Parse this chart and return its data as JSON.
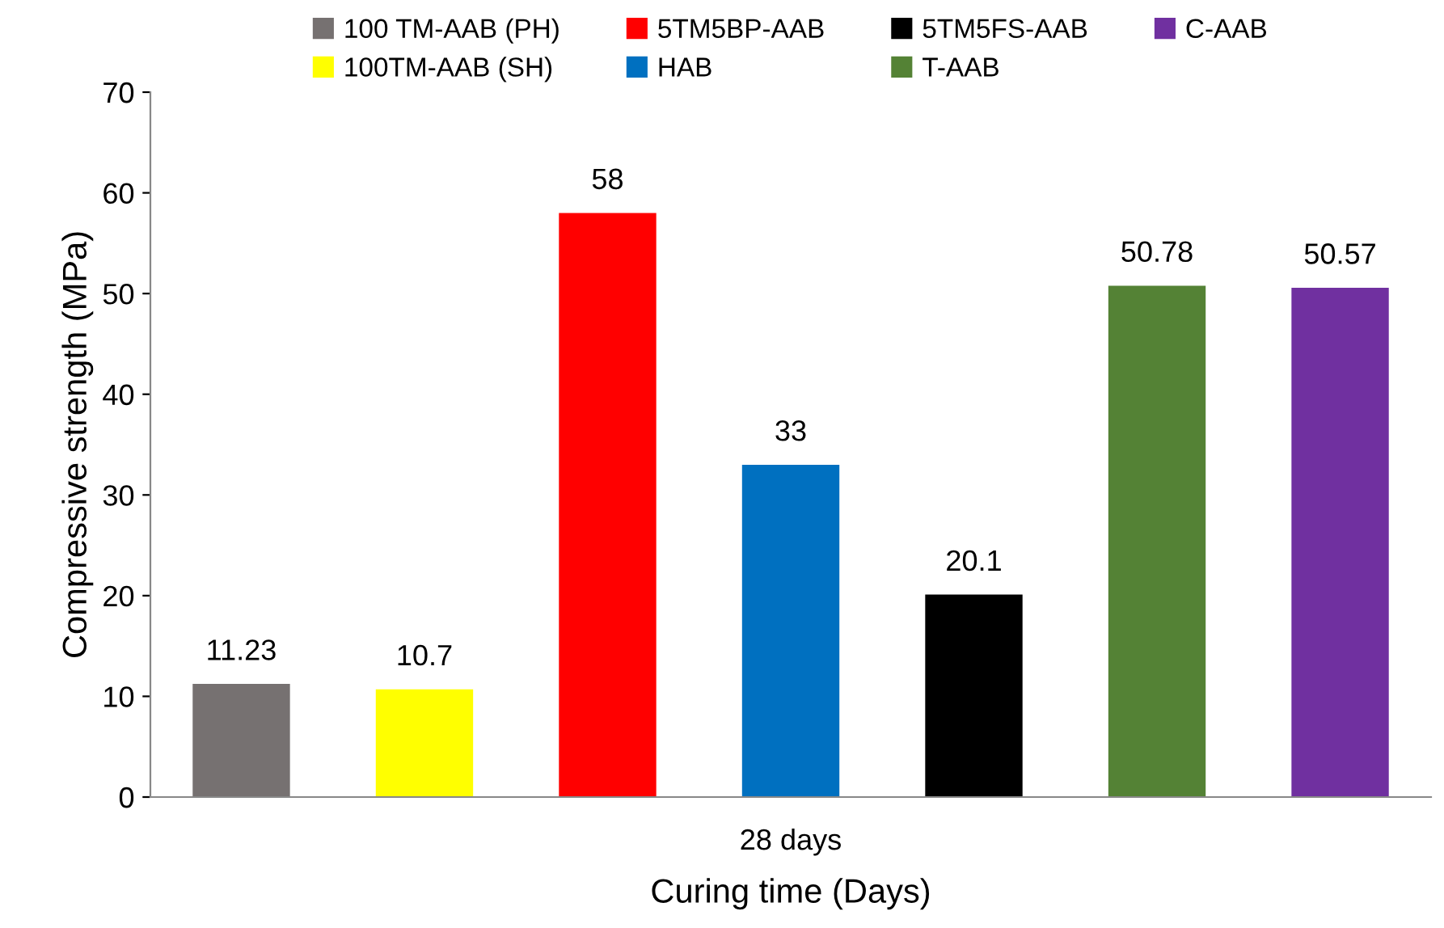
{
  "chart_data": {
    "type": "bar",
    "xlabel": "Curing time (Days)",
    "ylabel": "Compressive strength (MPa)",
    "categories": [
      "28 days"
    ],
    "series": [
      {
        "name": "100 TM-AAB (PH)",
        "color": "#767171",
        "values": [
          11.23
        ]
      },
      {
        "name": "100TM-AAB (SH)",
        "color": "#ffff00",
        "values": [
          10.7
        ]
      },
      {
        "name": "5TM5BP-AAB",
        "color": "#ff0000",
        "values": [
          58
        ]
      },
      {
        "name": "HAB",
        "color": "#0070c0",
        "values": [
          33
        ]
      },
      {
        "name": "5TM5FS-AAB",
        "color": "#000000",
        "values": [
          20.1
        ]
      },
      {
        "name": "T-AAB",
        "color": "#548235",
        "values": [
          50.78
        ]
      },
      {
        "name": "C-AAB",
        "color": "#7030a0",
        "values": [
          50.57
        ]
      }
    ],
    "ylim": [
      0,
      70
    ],
    "yticks": [
      0,
      10,
      20,
      30,
      40,
      50,
      60,
      70
    ],
    "data_labels": true,
    "legend": "top",
    "grid": false
  }
}
